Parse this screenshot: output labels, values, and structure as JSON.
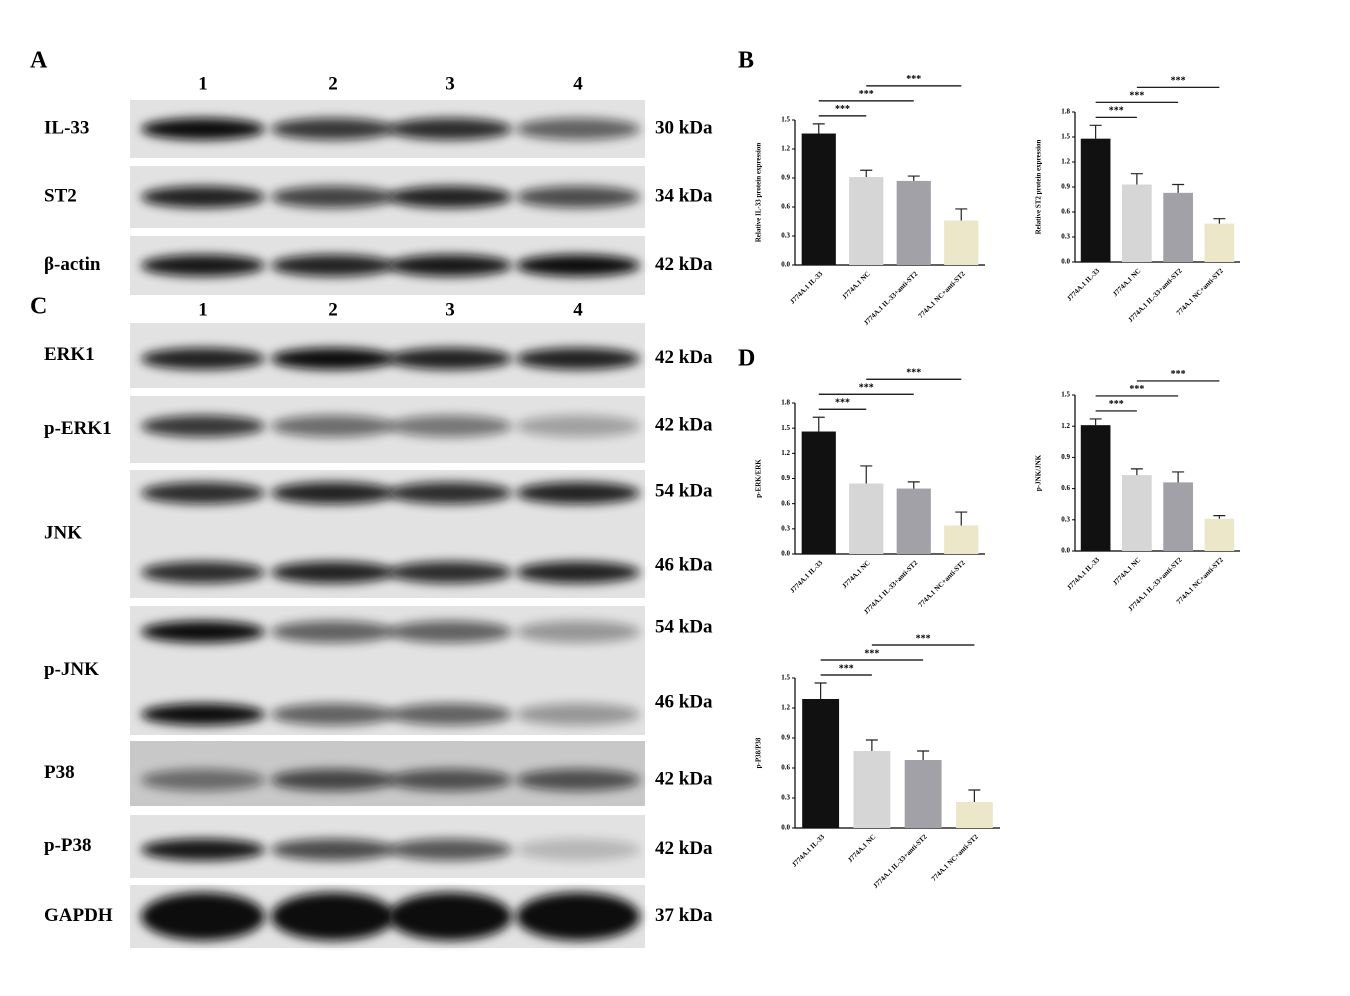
{
  "panel_labels": [
    "A",
    "B",
    "C",
    "D"
  ],
  "blot_a": {
    "lanes": [
      "1",
      "2",
      "3",
      "4"
    ],
    "rows": [
      {
        "name": "IL-33",
        "sizes": [
          "30 kDa"
        ]
      },
      {
        "name": "ST2",
        "sizes": [
          "34 kDa"
        ]
      },
      {
        "name": "β-actin",
        "sizes": [
          "42 kDa"
        ]
      }
    ]
  },
  "blot_c": {
    "lanes": [
      "1",
      "2",
      "3",
      "4"
    ],
    "rows": [
      {
        "name": "ERK1",
        "sizes": [
          "42 kDa"
        ]
      },
      {
        "name": "p-ERK1",
        "sizes": [
          "42 kDa"
        ]
      },
      {
        "name": "JNK",
        "sizes": [
          "54 kDa",
          "46 kDa"
        ]
      },
      {
        "name": "p-JNK",
        "sizes": [
          "54 kDa",
          "46 kDa"
        ]
      },
      {
        "name": "P38",
        "sizes": [
          "42 kDa"
        ]
      },
      {
        "name": "p-P38",
        "sizes": [
          "42 kDa"
        ]
      },
      {
        "name": "GAPDH",
        "sizes": [
          "37 kDa"
        ]
      }
    ]
  },
  "chart_data": [
    {
      "type": "bar",
      "ylabel": "Relative IL-33 protein expression",
      "categories": [
        "J774A.1 IL-33",
        "J774A.1 NC",
        "J774A.1 IL-33+anti-ST2",
        "774A.1 NC+anti-ST2"
      ],
      "colors": [
        "#111111",
        "#d6d6d6",
        "#a2a1a8",
        "#ece7c9"
      ],
      "values": [
        1.36,
        0.91,
        0.87,
        0.46
      ],
      "errors": [
        0.1,
        0.07,
        0.05,
        0.12
      ],
      "ylim": [
        0,
        1.5
      ],
      "yticks": [
        {
          "value": 0,
          "label": "0.0"
        },
        0.3,
        0.6,
        0.9,
        1.2,
        1.5
      ],
      "significance": [
        {
          "pair": [
            0,
            1
          ],
          "label": "***"
        },
        {
          "pair": [
            0,
            2
          ],
          "label": "***"
        },
        {
          "pair": [
            1,
            3
          ],
          "label": "***"
        }
      ]
    },
    {
      "type": "bar",
      "ylabel": "Relative ST2 protein expression",
      "categories": [
        "J774A.1 IL-33",
        "J774A.1 NC",
        "J774A.1 IL-33+anti-ST2",
        "774A.1 NC+anti-ST2"
      ],
      "colors": [
        "#111111",
        "#d6d6d6",
        "#a2a1a8",
        "#ece7c9"
      ],
      "values": [
        1.48,
        0.93,
        0.83,
        0.46
      ],
      "errors": [
        0.16,
        0.13,
        0.1,
        0.06
      ],
      "ylim": [
        0,
        1.8
      ],
      "yticks": [
        {
          "value": 0,
          "label": "0.0"
        },
        0.3,
        0.6,
        0.9,
        1.2,
        1.5,
        1.8
      ],
      "significance": [
        {
          "pair": [
            0,
            1
          ],
          "label": "***"
        },
        {
          "pair": [
            0,
            2
          ],
          "label": "***"
        },
        {
          "pair": [
            1,
            3
          ],
          "label": "***"
        }
      ]
    },
    {
      "type": "bar",
      "ylabel": "p-ERK/ERK",
      "categories": [
        "J774A.1 IL-33",
        "J774A.1 NC",
        "J774A.1 IL-33+anti-ST2",
        "774A.1 NC+anti-ST2"
      ],
      "colors": [
        "#111111",
        "#d6d6d6",
        "#a2a1a8",
        "#ece7c9"
      ],
      "values": [
        1.46,
        0.84,
        0.78,
        0.34
      ],
      "errors": [
        0.17,
        0.21,
        0.08,
        0.16
      ],
      "ylim": [
        0,
        1.8
      ],
      "yticks": [
        {
          "value": 0,
          "label": "0.0"
        },
        0.3,
        0.6,
        0.9,
        1.2,
        1.5,
        1.8
      ],
      "significance": [
        {
          "pair": [
            0,
            1
          ],
          "label": "***"
        },
        {
          "pair": [
            0,
            2
          ],
          "label": "***"
        },
        {
          "pair": [
            1,
            3
          ],
          "label": "***"
        }
      ]
    },
    {
      "type": "bar",
      "ylabel": "p-JNK/JNK",
      "categories": [
        "J774A.1 IL-33",
        "J774A.1 NC",
        "J774A.1 IL-33+anti-ST2",
        "774A.1 NC+anti-ST2"
      ],
      "colors": [
        "#111111",
        "#d6d6d6",
        "#a2a1a8",
        "#ece7c9"
      ],
      "values": [
        1.21,
        0.73,
        0.66,
        0.31
      ],
      "errors": [
        0.06,
        0.06,
        0.1,
        0.03
      ],
      "ylim": [
        0,
        1.5
      ],
      "yticks": [
        {
          "value": 0,
          "label": "0.0"
        },
        0.3,
        0.6,
        0.9,
        1.2,
        1.5
      ],
      "significance": [
        {
          "pair": [
            0,
            1
          ],
          "label": "***"
        },
        {
          "pair": [
            0,
            2
          ],
          "label": "***"
        },
        {
          "pair": [
            1,
            3
          ],
          "label": "***"
        }
      ]
    },
    {
      "type": "bar",
      "ylabel": "p-P38/P38",
      "categories": [
        "J774A.1 IL-33",
        "J774A.1 NC",
        "J774A.1 IL-33+anti-ST2",
        "774A.1 NC+anti-ST2"
      ],
      "colors": [
        "#111111",
        "#d6d6d6",
        "#a2a1a8",
        "#ece7c9"
      ],
      "values": [
        1.29,
        0.77,
        0.68,
        0.26
      ],
      "errors": [
        0.16,
        0.11,
        0.09,
        0.12
      ],
      "ylim": [
        0,
        1.5
      ],
      "yticks": [
        {
          "value": 0,
          "label": "0.0"
        },
        0.3,
        0.6,
        0.9,
        1.2,
        1.5
      ],
      "significance": [
        {
          "pair": [
            0,
            1
          ],
          "label": "***"
        },
        {
          "pair": [
            0,
            2
          ],
          "label": "***"
        },
        {
          "pair": [
            1,
            3
          ],
          "label": "***"
        }
      ]
    }
  ]
}
